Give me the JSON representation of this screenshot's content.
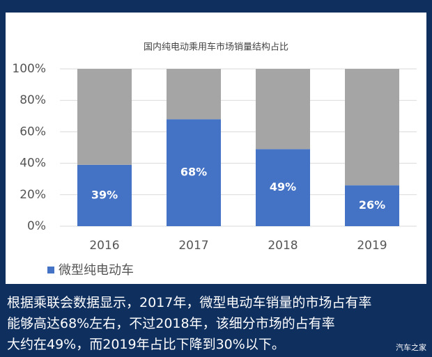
{
  "chart_data": {
    "type": "stacked-bar",
    "title": "国内纯电动乘用车市场销量结构占比",
    "categories": [
      "2016",
      "2017",
      "2018",
      "2019"
    ],
    "series": [
      {
        "name": "微型纯电动车",
        "color": "#4472c4",
        "values": [
          39,
          68,
          49,
          26
        ],
        "value_labels": [
          "39%",
          "68%",
          "49%",
          "26%"
        ]
      },
      {
        "color": "#a5a5a5",
        "values": [
          61,
          32,
          51,
          74
        ]
      }
    ],
    "ylim": [
      0,
      100
    ],
    "yticks": [
      {
        "value": 0,
        "label": "0%"
      },
      {
        "value": 20,
        "label": "20%"
      },
      {
        "value": 40,
        "label": "40%"
      },
      {
        "value": 60,
        "label": "60%"
      },
      {
        "value": 80,
        "label": "80%"
      },
      {
        "value": 100,
        "label": "100%"
      }
    ],
    "grid": true,
    "legend": "bottom-left"
  },
  "caption": [
    "根据乘联会数据显示，2017年，微型电动车销量的市场占有率",
    "能够高达68%左右，不过2018年，该细分市场的占有率",
    "大约在49%，而2019年占比下降到30%以下。"
  ],
  "watermark": "汽车之家"
}
